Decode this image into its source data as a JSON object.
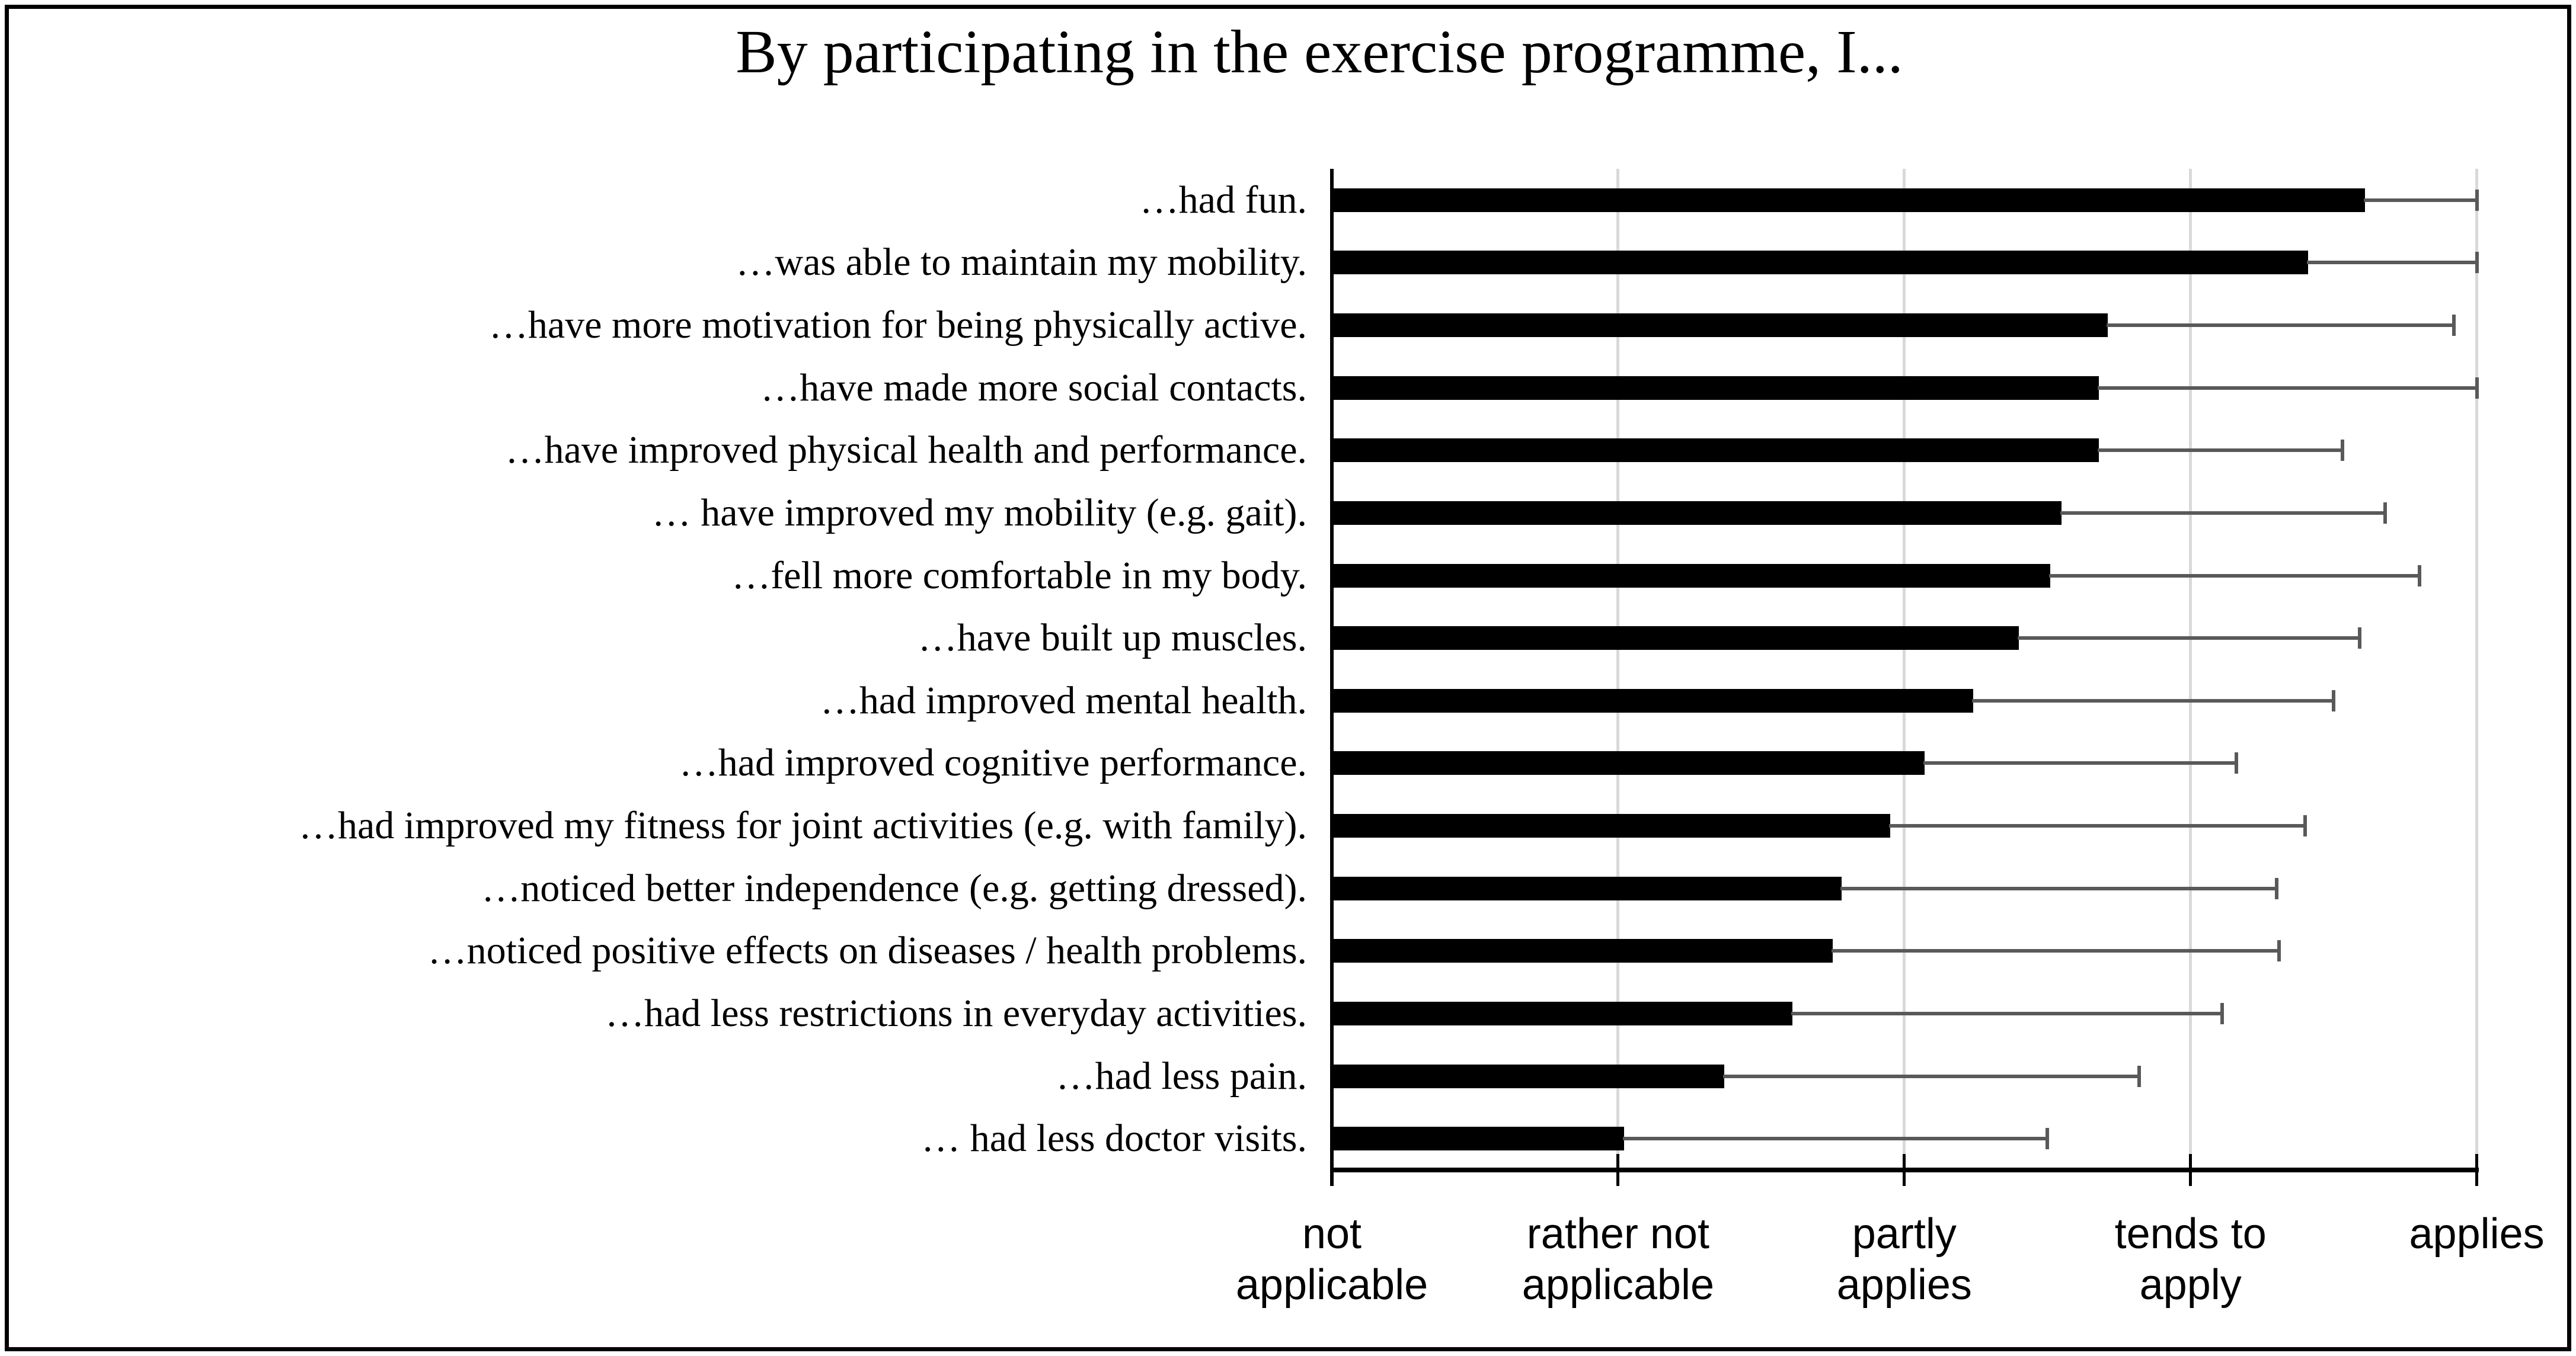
{
  "chart_data": {
    "type": "bar",
    "orientation": "horizontal",
    "title": "By participating in the exercise programme, I...",
    "categories": [
      "…had fun.",
      "…was able to maintain my mobility.",
      "…have more motivation for being physically active.",
      "…have made more social contacts.",
      "…have improved physical health and performance.",
      "… have improved my mobility (e.g. gait).",
      "…fell more comfortable in my body.",
      "…have built up muscles.",
      "…had improved mental health.",
      "…had improved cognitive performance.",
      "…had improved my fitness for joint activities (e.g. with family).",
      "…noticed better independence (e.g. getting dressed).",
      "…noticed positive effects on diseases / health problems.",
      "…had less restrictions in everyday activities.",
      "…had less pain.",
      "… had less doctor visits."
    ],
    "values": [
      4.61,
      4.41,
      3.71,
      3.68,
      3.68,
      3.55,
      3.51,
      3.4,
      3.24,
      3.07,
      2.95,
      2.78,
      2.75,
      2.61,
      2.37,
      2.02
    ],
    "error_upper": [
      5.0,
      5.0,
      4.92,
      5.0,
      4.53,
      4.68,
      4.8,
      4.59,
      4.5,
      4.16,
      4.4,
      4.3,
      4.31,
      4.11,
      3.82,
      3.5
    ],
    "x_axis": {
      "min": 1,
      "max": 5,
      "tick_values": [
        1,
        2,
        3,
        4,
        5
      ],
      "tick_labels": [
        [
          "not",
          "applicable"
        ],
        [
          "rather not",
          "applicable"
        ],
        [
          "partly",
          "applies"
        ],
        [
          "tends to",
          "apply"
        ],
        [
          "applies"
        ]
      ]
    },
    "grid": true,
    "legend": false,
    "colors": {
      "bar": "#000000",
      "error_bar": "#595959",
      "gridline": "#D9D9D9",
      "axis": "#000000",
      "text": "#000000",
      "background": "#ffffff"
    }
  }
}
